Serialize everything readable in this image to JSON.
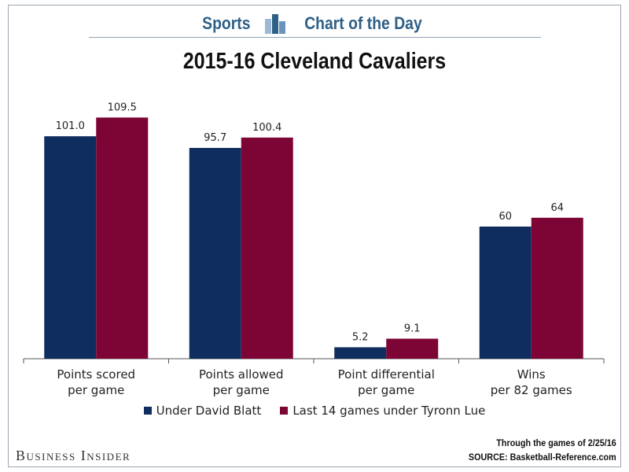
{
  "header": {
    "left_text": "Sports",
    "right_text": "Chart of the Day",
    "icon": "bar-chart-icon"
  },
  "colors": {
    "series1": "#0f2d5e",
    "series2": "#7d0536",
    "header_text": "#2e5f86"
  },
  "chart_data": {
    "type": "bar",
    "title": "2015-16 Cleveland Cavaliers",
    "categories": [
      [
        "Points scored",
        "per game"
      ],
      [
        "Points allowed",
        "per game"
      ],
      [
        "Point differential",
        "per game"
      ],
      [
        "Wins",
        "per 82 games"
      ]
    ],
    "series": [
      {
        "name": "Under David Blatt",
        "color": "#0f2d5e",
        "values": [
          101.0,
          95.7,
          5.2,
          60
        ],
        "labels": [
          "101.0",
          "95.7",
          "5.2",
          "60"
        ]
      },
      {
        "name": "Last 14 games under Tyronn Lue",
        "color": "#7d0536",
        "values": [
          109.5,
          100.4,
          9.1,
          64
        ],
        "labels": [
          "109.5",
          "100.4",
          "9.1",
          "64"
        ]
      }
    ],
    "ylim": [
      0,
      120
    ],
    "grid": false,
    "legend_position": "bottom"
  },
  "footer": {
    "brand": "Business Insider",
    "note_line1": "Through the games of 2/25/16",
    "note_line2": "SOURCE: Basketball-Reference.com"
  }
}
